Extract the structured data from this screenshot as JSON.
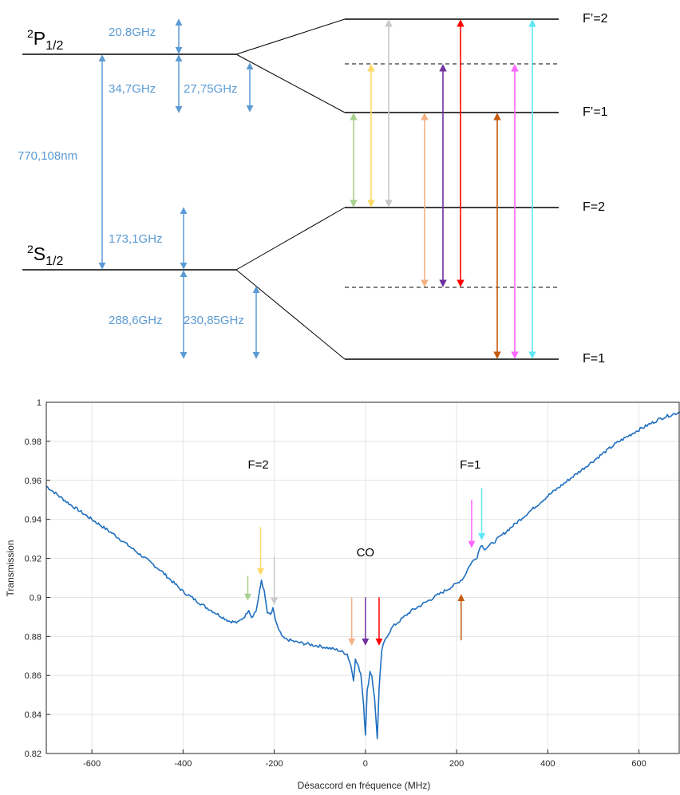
{
  "diagram": {
    "P_term": {
      "sup": "2",
      "letter": "P",
      "sub": "1/2"
    },
    "S_term": {
      "sup": "2",
      "letter": "S",
      "sub": "1/2"
    },
    "labels": {
      "p_top_split": "20.8GHz",
      "p_bottom_split": "34,7GHz",
      "p_hf": "27,75GHz",
      "wavelength": "770,108nm",
      "s_top_split": "173,1GHz",
      "s_bottom_split": "288,6GHz",
      "s_hf": "230,85GHz"
    },
    "levels": {
      "Fp2": "F’=2",
      "Fp1": "F’=1",
      "F2": "F=2",
      "F1": "F=1"
    },
    "transition_colors": {
      "green": "#a9d18e",
      "yellow": "#ffd966",
      "gray": "#c8c8c8",
      "peach": "#f4b183",
      "purple": "#7030a0",
      "red": "#ff0000",
      "brown": "#c55a11",
      "magenta": "#ff66ff",
      "cyan": "#5ee6f5"
    },
    "arrow_color": "#5b9bd5"
  },
  "chart_data": {
    "type": "line",
    "title": "",
    "xlabel": "Désaccord en fréquence (MHz)",
    "ylabel": "Transmission",
    "xlim": [
      -700,
      690
    ],
    "ylim": [
      0.82,
      1.0
    ],
    "xticks": [
      -600,
      -400,
      -200,
      0,
      200,
      400,
      600
    ],
    "yticks": [
      0.82,
      0.84,
      0.86,
      0.88,
      0.9,
      0.92,
      0.94,
      0.96,
      0.98,
      1
    ],
    "ytick_labels": [
      "0.82",
      "0.84",
      "0.86",
      "0.88",
      "0.9",
      "0.92",
      "0.94",
      "0.96",
      "0.98",
      "1"
    ],
    "grid": true,
    "line_color": "#1f6fbf",
    "series": [
      {
        "x": [
          -700,
          -650,
          -600,
          -550,
          -500,
          -450,
          -400,
          -350,
          -300,
          -280,
          -262,
          -256,
          -250,
          -240,
          -232,
          -228,
          -222,
          -215,
          -208,
          -203,
          -198,
          -190,
          -180,
          -150,
          -100,
          -60,
          -40,
          -32,
          -26,
          -22,
          -18,
          -10,
          -4,
          0,
          4,
          10,
          14,
          20,
          26,
          30,
          36,
          44,
          60,
          100,
          150,
          200,
          215,
          230,
          245,
          253,
          262,
          275,
          300,
          350,
          400,
          450,
          500,
          550,
          600,
          650,
          690
        ],
        "y": [
          0.957,
          0.948,
          0.94,
          0.932,
          0.923,
          0.914,
          0.903,
          0.895,
          0.888,
          0.887,
          0.891,
          0.894,
          0.89,
          0.893,
          0.903,
          0.909,
          0.903,
          0.892,
          0.891,
          0.894,
          0.889,
          0.883,
          0.879,
          0.877,
          0.875,
          0.873,
          0.871,
          0.865,
          0.858,
          0.868,
          0.866,
          0.861,
          0.845,
          0.83,
          0.852,
          0.862,
          0.86,
          0.848,
          0.828,
          0.853,
          0.873,
          0.879,
          0.885,
          0.893,
          0.9,
          0.907,
          0.91,
          0.917,
          0.921,
          0.927,
          0.925,
          0.927,
          0.932,
          0.942,
          0.952,
          0.961,
          0.97,
          0.979,
          0.986,
          0.992,
          0.995
        ]
      }
    ],
    "annotations": [
      {
        "text": "F=2",
        "x": -235,
        "y": 0.966
      },
      {
        "text": "CO",
        "x": 0,
        "y": 0.921
      },
      {
        "text": "F=1",
        "x": 230,
        "y": 0.966
      }
    ],
    "markers": [
      {
        "color": "green",
        "x": -258,
        "y_from": 0.911,
        "y_to": 0.899
      },
      {
        "color": "yellow",
        "x": -230,
        "y_from": 0.936,
        "y_to": 0.912
      },
      {
        "color": "gray",
        "x": -200,
        "y_from": 0.921,
        "y_to": 0.897
      },
      {
        "color": "peach",
        "x": -30,
        "y_from": 0.9,
        "y_to": 0.876
      },
      {
        "color": "purple",
        "x": 0,
        "y_from": 0.9,
        "y_to": 0.876
      },
      {
        "color": "red",
        "x": 30,
        "y_from": 0.9,
        "y_to": 0.876
      },
      {
        "color": "brown",
        "x": 210,
        "y_from": 0.878,
        "y_to": 0.901
      },
      {
        "color": "magenta",
        "x": 233,
        "y_from": 0.95,
        "y_to": 0.926
      },
      {
        "color": "cyan",
        "x": 255,
        "y_from": 0.956,
        "y_to": 0.93
      }
    ]
  }
}
